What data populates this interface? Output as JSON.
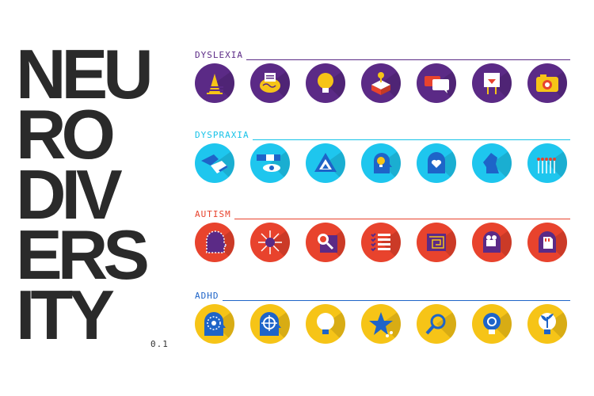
{
  "title": {
    "lines": [
      "NEU",
      "RO",
      "DIV",
      "ERS",
      "ITY"
    ]
  },
  "version": "0.1",
  "sections": [
    {
      "label": "DYSLEXIA",
      "color": "#5b2a86",
      "circle": "#5b2a86",
      "icons": [
        "letter-a-icon",
        "brain-scan-icon",
        "lightbulb-icon",
        "gift-box-icon",
        "speech-bubbles-icon",
        "easel-icon",
        "camera-icon"
      ]
    },
    {
      "label": "DYSPRAXIA",
      "color": "#17c3e8",
      "circle": "#1ec6ee",
      "icons": [
        "hands-icon",
        "hand-eye-icon",
        "triangle-icon",
        "head-bulb-icon",
        "head-heart-icon",
        "chess-knight-icon",
        "matches-icon"
      ]
    },
    {
      "label": "AUTISM",
      "color": "#e8432d",
      "circle": "#e8432d",
      "icons": [
        "dashed-head-icon",
        "head-arrows-icon",
        "magnifier-grid-icon",
        "checklist-icon",
        "maze-icon",
        "head-camera-icon",
        "head-sd-card-icon"
      ]
    },
    {
      "label": "ADHD",
      "color": "#1e64c8",
      "circle": "#f6c417",
      "icons": [
        "head-target-icon",
        "head-crosshair-icon",
        "bulb-icon",
        "star-icon",
        "magnifier-icon",
        "gear-bulb-icon",
        "plant-bulb-icon"
      ]
    }
  ]
}
